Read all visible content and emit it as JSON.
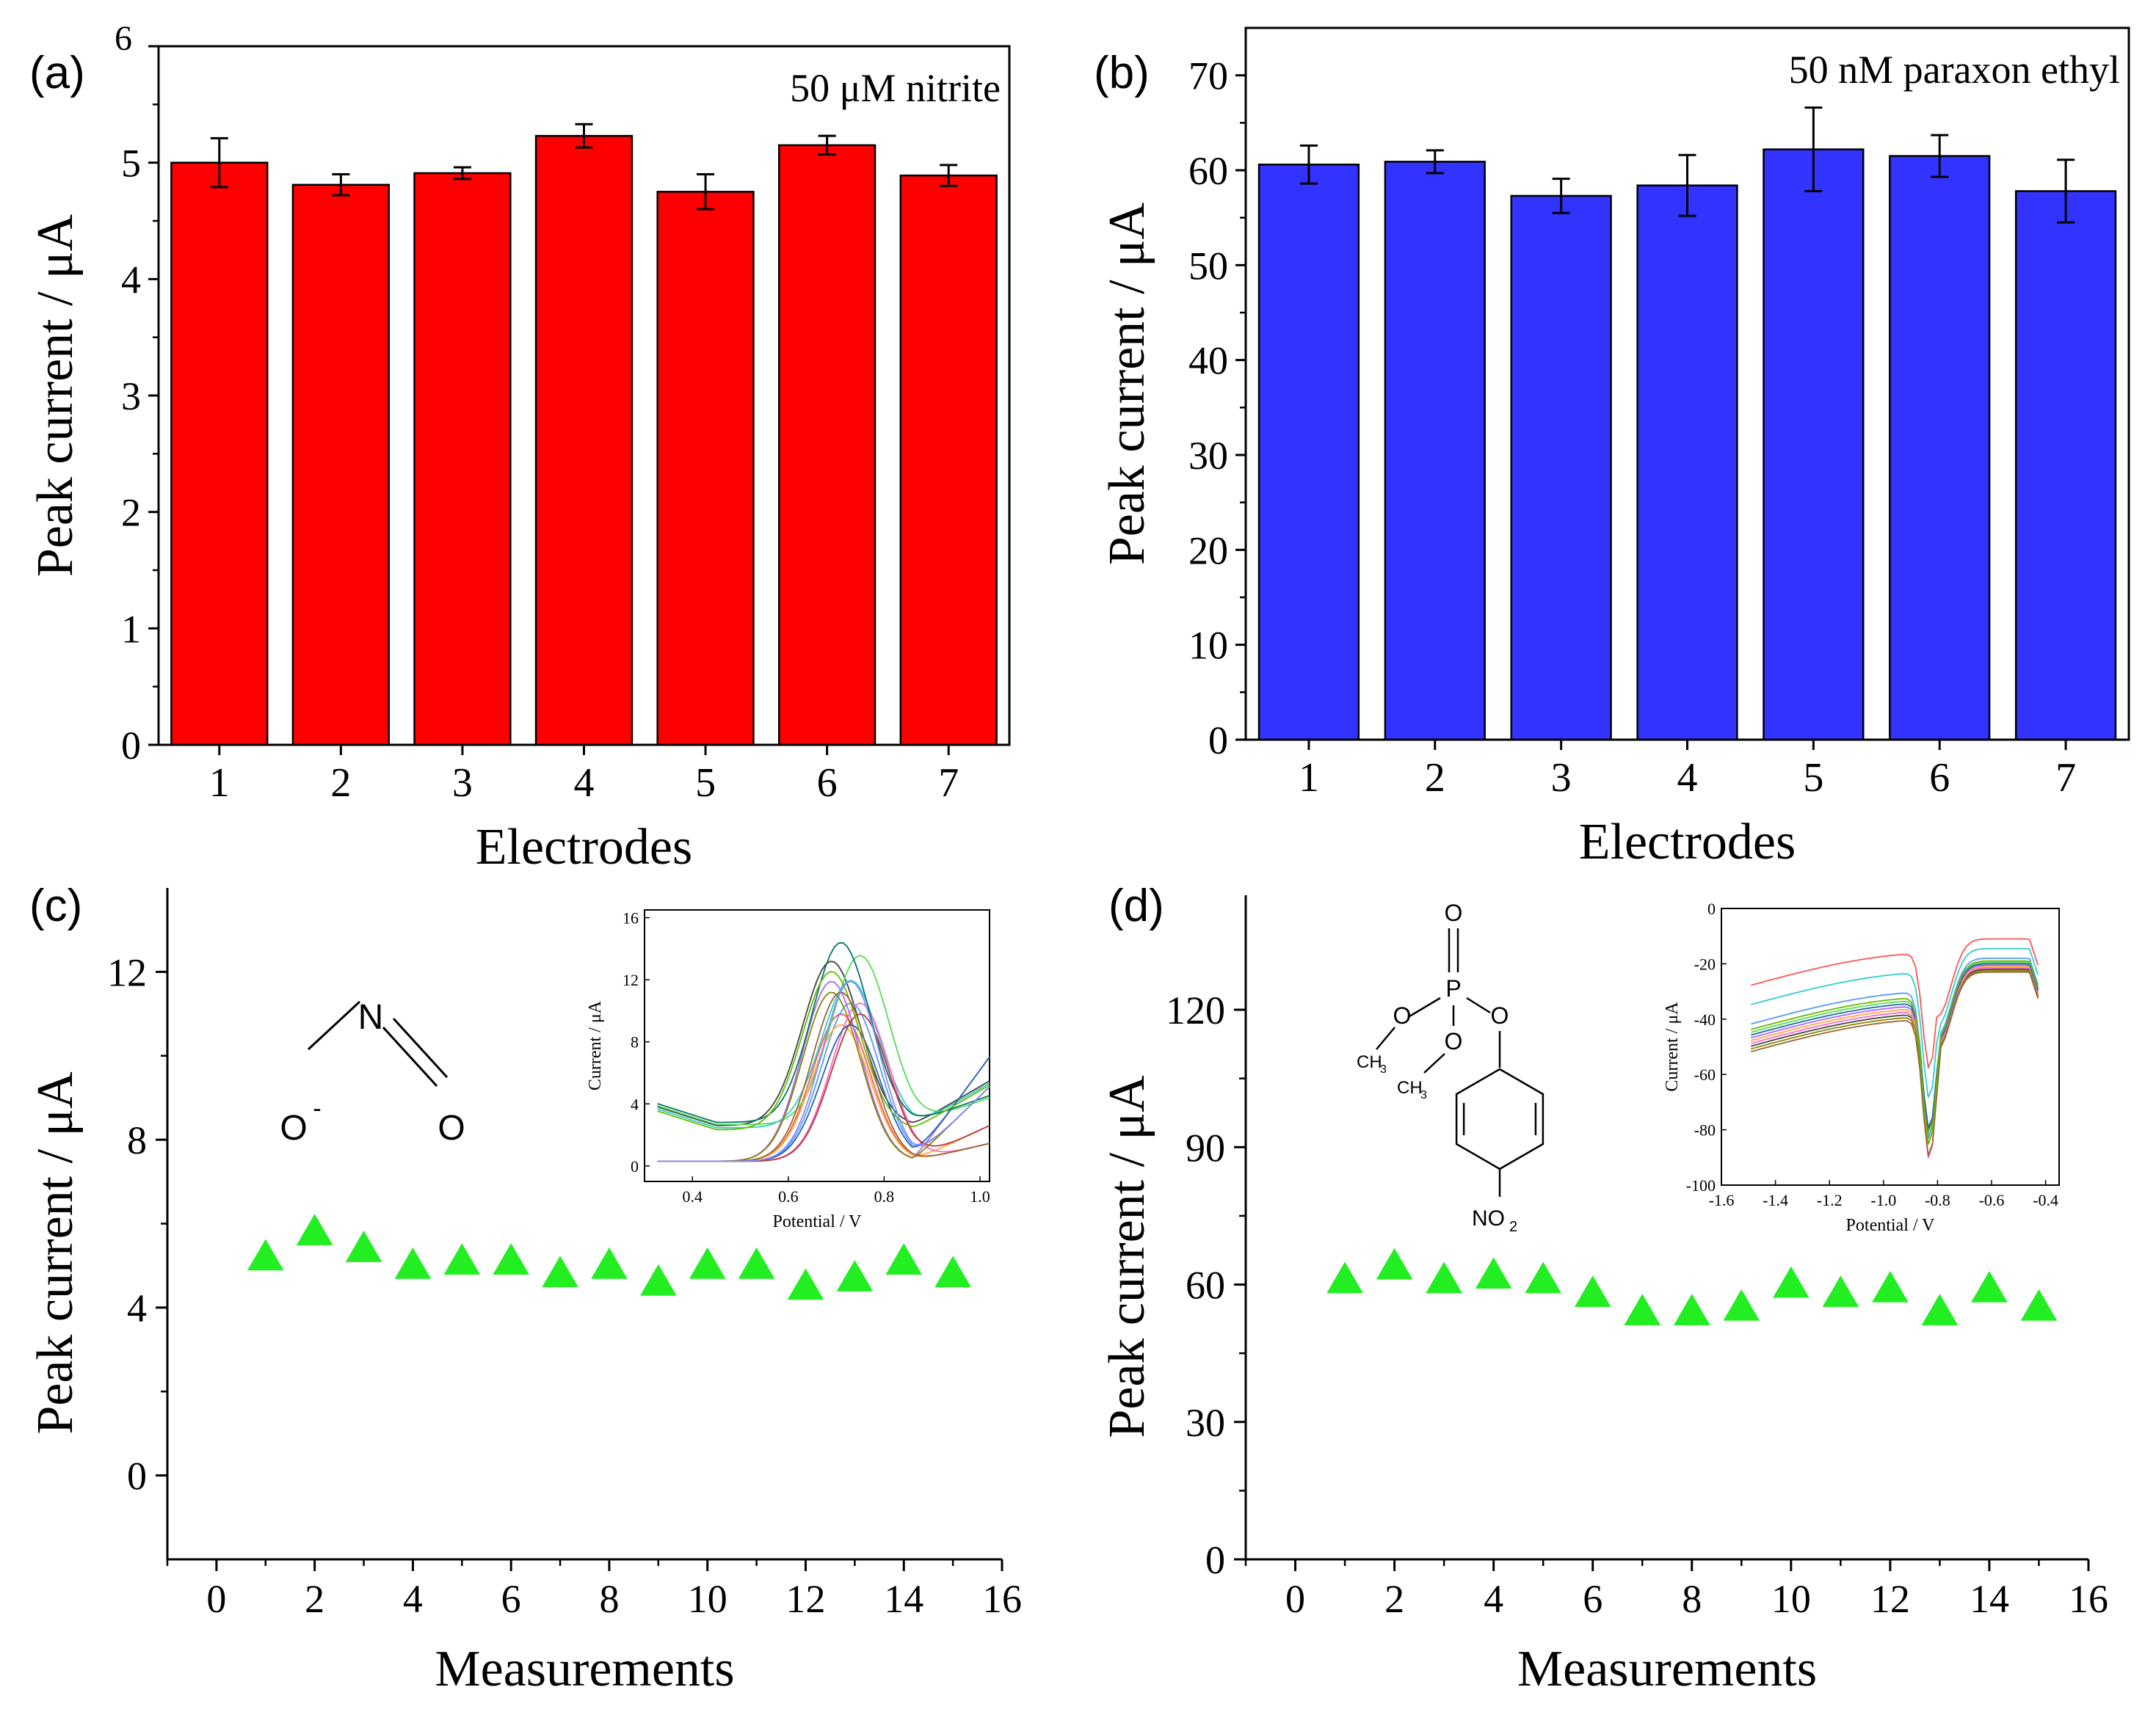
{
  "figure_description": "Four-panel figure",
  "chart_data": [
    {
      "id": "a",
      "panel_label": "(a)",
      "type": "bar",
      "annotation": "50 μM nitrite",
      "categories": [
        "1",
        "2",
        "3",
        "4",
        "5",
        "6",
        "7"
      ],
      "values": [
        5.0,
        4.81,
        4.91,
        5.23,
        4.75,
        5.15,
        4.89
      ],
      "errors": [
        0.21,
        0.09,
        0.05,
        0.1,
        0.15,
        0.08,
        0.09
      ],
      "bar_color": "#ff0000",
      "xlabel": "Electrodes",
      "ylabel": "Peak current / μA",
      "ylim": [
        0,
        6
      ],
      "yticks": [
        "0",
        "1",
        "2",
        "3",
        "4",
        "5",
        "6"
      ]
    },
    {
      "id": "b",
      "panel_label": "(b)",
      "type": "bar",
      "annotation": "50 nM  paraxon ethyl",
      "categories": [
        "1",
        "2",
        "3",
        "4",
        "5",
        "6",
        "7"
      ],
      "values": [
        60.6,
        60.9,
        57.3,
        58.4,
        62.2,
        61.5,
        57.8
      ],
      "errors": [
        2.0,
        1.2,
        1.8,
        3.2,
        4.4,
        2.2,
        3.3
      ],
      "bar_color": "#3333ff",
      "xlabel": "Electrodes",
      "ylabel": "Peak current  / μA",
      "ylim": [
        0,
        75
      ],
      "yticks": [
        "0",
        "10",
        "20",
        "30",
        "40",
        "50",
        "60",
        "70"
      ]
    },
    {
      "id": "c",
      "panel_label": "(c)",
      "type": "scatter",
      "x": [
        1,
        2,
        3,
        4,
        5,
        6,
        7,
        8,
        9,
        10,
        11,
        12,
        13,
        14,
        15
      ],
      "values": [
        5.2,
        5.8,
        5.4,
        5.0,
        5.1,
        5.1,
        4.8,
        5.0,
        4.6,
        5.0,
        5.0,
        4.5,
        4.7,
        5.1,
        4.8
      ],
      "marker_color": "#22ee22",
      "xlabel": "Measurements",
      "ylabel": "Peak current / μA",
      "xlim": [
        -1,
        16
      ],
      "ylim": [
        -2,
        14
      ],
      "xticks": [
        "0",
        "2",
        "4",
        "6",
        "8",
        "10",
        "12",
        "14",
        "16"
      ],
      "yticks": [
        "0",
        "4",
        "8",
        "12"
      ],
      "molecule": {
        "name": "nitrite",
        "atoms": [
          "N",
          "O-",
          "O"
        ],
        "charge": "-"
      },
      "inset": {
        "type": "line",
        "xlabel": "Potential / V",
        "ylabel": "Current / μA",
        "xticks": [
          "0.4",
          "0.6",
          "0.8",
          "1.0"
        ],
        "yticks": [
          "0",
          "4",
          "8",
          "12",
          "16"
        ],
        "xlim": [
          0.3,
          1.02
        ],
        "ylim": [
          -1,
          16.5
        ],
        "colors": [
          "#444444",
          "#ff5555",
          "#5599ff",
          "#55dd55",
          "#aa66ff",
          "#ffaa33",
          "#33cccc",
          "#ff66cc",
          "#888800",
          "#007766",
          "#2266aa",
          "#bb3333",
          "#66bb00",
          "#996633",
          "#8888ff"
        ],
        "series_count": 15
      }
    },
    {
      "id": "d",
      "panel_label": "(d)",
      "type": "scatter",
      "x": [
        1,
        2,
        3,
        4,
        5,
        6,
        7,
        8,
        9,
        10,
        11,
        12,
        13,
        14,
        15
      ],
      "values": [
        61,
        64,
        61,
        62,
        61,
        58,
        54,
        54,
        55,
        60,
        58,
        59,
        54,
        59,
        55
      ],
      "marker_color": "#22ee22",
      "xlabel": "Measurements",
      "ylabel": "Peak current / μA",
      "xlim": [
        -1,
        16
      ],
      "ylim": [
        0,
        145
      ],
      "xticks": [
        "0",
        "2",
        "4",
        "6",
        "8",
        "10",
        "12",
        "14",
        "16"
      ],
      "yticks": [
        "0",
        "30",
        "60",
        "90",
        "120"
      ],
      "molecule": {
        "name": "paraoxon ethyl",
        "atoms": [
          "O",
          "P",
          "O",
          "O",
          "O",
          "CH3",
          "CH3",
          "NO2"
        ],
        "ch3": "CH",
        "ch3_sub": "3",
        "no2": "NO",
        "no2_sub": "2"
      },
      "inset": {
        "type": "line",
        "xlabel": "Potential / V",
        "ylabel": "Current / μA",
        "xticks": [
          "-1.6",
          "-1.4",
          "-1.2",
          "-1.0",
          "-0.8",
          "-0.6",
          "-0.4"
        ],
        "yticks": [
          "-100",
          "-80",
          "-60",
          "-40",
          "-20",
          "0"
        ],
        "xlim": [
          -1.6,
          -0.35
        ],
        "ylim": [
          -100,
          0
        ],
        "colors": [
          "#ff5555",
          "#33cccc",
          "#55dd55",
          "#5599ff",
          "#444444",
          "#aa66ff",
          "#ffaa33",
          "#ff66cc",
          "#888800",
          "#2266aa",
          "#996633",
          "#66bb00"
        ],
        "series_count": 12
      }
    }
  ]
}
